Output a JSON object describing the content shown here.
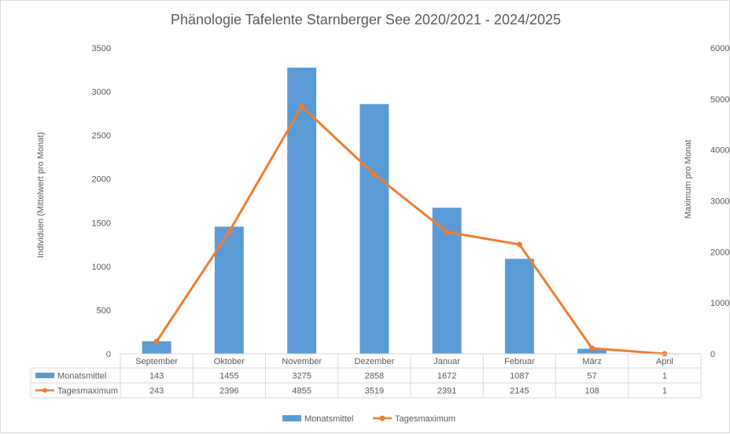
{
  "chart_data": {
    "type": "bar",
    "title": "Phänologie Tafelente Starnberger See 2020/2021 - 2024/2025",
    "ylabel": "Individuen (Mittelwert pro Monat)",
    "y2label": "Maximum pro Monat",
    "ylim": [
      0,
      3500
    ],
    "y2lim": [
      0,
      6000
    ],
    "yticks": [
      "0",
      "500",
      "1000",
      "1500",
      "2000",
      "2500",
      "3000",
      "3500"
    ],
    "y2ticks": [
      "0",
      "1000",
      "2000",
      "3000",
      "4000",
      "5000",
      "6000"
    ],
    "categories": [
      "September",
      "Oktober",
      "November",
      "Dezember",
      "Januar",
      "Februar",
      "März",
      "April"
    ],
    "series": [
      {
        "name": "Monatsmittel",
        "type": "bar",
        "axis": "left",
        "values": [
          143,
          1455,
          3275,
          2858,
          1672,
          1087,
          57,
          1
        ]
      },
      {
        "name": "Tagesmaximum",
        "type": "line",
        "axis": "right",
        "values": [
          243,
          2396,
          4855,
          3519,
          2391,
          2145,
          108,
          1
        ]
      }
    ],
    "data_table": true,
    "grid": false,
    "legend": "bottom",
    "colors": {
      "bar": "#5b9bd5",
      "line": "#ed7d31"
    }
  }
}
